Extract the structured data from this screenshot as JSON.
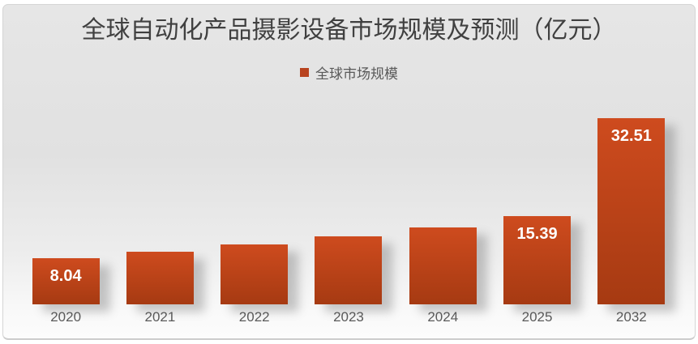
{
  "style": {
    "page_background": "#ffffff",
    "panel_background_top": "#e3e3e3",
    "panel_background_bottom": "#fafafa",
    "panel_border": "#d5d5d5",
    "title_color": "#404040",
    "axis_label_color": "#595959",
    "value_label_color": "#ffffff",
    "bar_color_top": "#ce4b1e",
    "bar_color_bottom": "#a63a12",
    "legend_marker_color": "#b8431f"
  },
  "chart_data": {
    "type": "bar",
    "title": "全球自动化产品摄影设备市场规模及预测（亿元）",
    "legend": {
      "position": "top",
      "entries": [
        {
          "label": "全球市场规模",
          "marker_color": "#b8431f"
        }
      ]
    },
    "categories": [
      "2020",
      "2021",
      "2022",
      "2023",
      "2024",
      "2025",
      "2032"
    ],
    "series": [
      {
        "name": "全球市场规模",
        "values": [
          8.04,
          9.2,
          10.4,
          11.9,
          13.5,
          15.39,
          32.51
        ]
      }
    ],
    "value_labels": [
      "8.04",
      "",
      "",
      "",
      "",
      "15.39",
      "32.51"
    ],
    "xlabel": "",
    "ylabel": "",
    "ylim": [
      0,
      35
    ],
    "grid": false,
    "axis_lines": false
  }
}
